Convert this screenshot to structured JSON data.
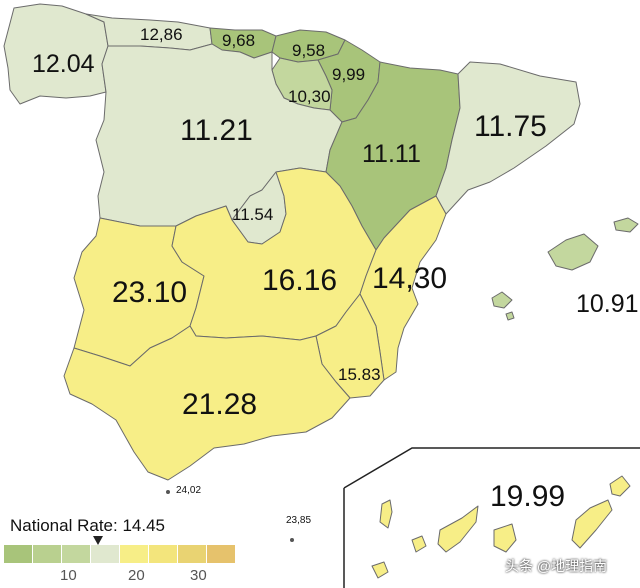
{
  "colors": {
    "tier_low": "#a8c47a",
    "tier_green": "#c3d79e",
    "tier_pale": "#e0e8cf",
    "tier_yellow": "#f7ee87",
    "tier_orange": "#e6c26c",
    "inset_border": "#222222",
    "coastline": "#6b6b6b"
  },
  "regions": [
    {
      "name": "Galicia",
      "value": "12.04"
    },
    {
      "name": "Asturias",
      "value": "12,86"
    },
    {
      "name": "Cantabria",
      "value": "9,68"
    },
    {
      "name": "Pais Vasco",
      "value": "9,58"
    },
    {
      "name": "Navarra",
      "value": "9,99"
    },
    {
      "name": "La Rioja",
      "value": "10,30"
    },
    {
      "name": "Castilla y Leon",
      "value": "11.21"
    },
    {
      "name": "Aragon",
      "value": "11.11"
    },
    {
      "name": "Cataluna",
      "value": "11.75"
    },
    {
      "name": "Madrid",
      "value": "11.54"
    },
    {
      "name": "Extremadura",
      "value": "23.10"
    },
    {
      "name": "Castilla-La Mancha",
      "value": "16.16"
    },
    {
      "name": "Comunidad Valenciana",
      "value": "14,30"
    },
    {
      "name": "Islas Baleares",
      "value": "10.91"
    },
    {
      "name": "Murcia",
      "value": "15.83"
    },
    {
      "name": "Andalucia",
      "value": "21.28"
    },
    {
      "name": "Ceuta",
      "value": "24,02"
    },
    {
      "name": "Melilla",
      "value": "23,85"
    },
    {
      "name": "Canarias",
      "value": "19.99"
    }
  ],
  "legend": {
    "national_label": "National Rate: 14.45",
    "national_value": 14.45,
    "ticks": [
      "10",
      "20",
      "30"
    ],
    "swatch_colors": [
      "#a8c47a",
      "#b9d08f",
      "#c3d79e",
      "#e0e8cf",
      "#f7ee87",
      "#f3e57c",
      "#e9d372",
      "#e6c26c"
    ]
  },
  "watermark": "头条 @地理指南"
}
